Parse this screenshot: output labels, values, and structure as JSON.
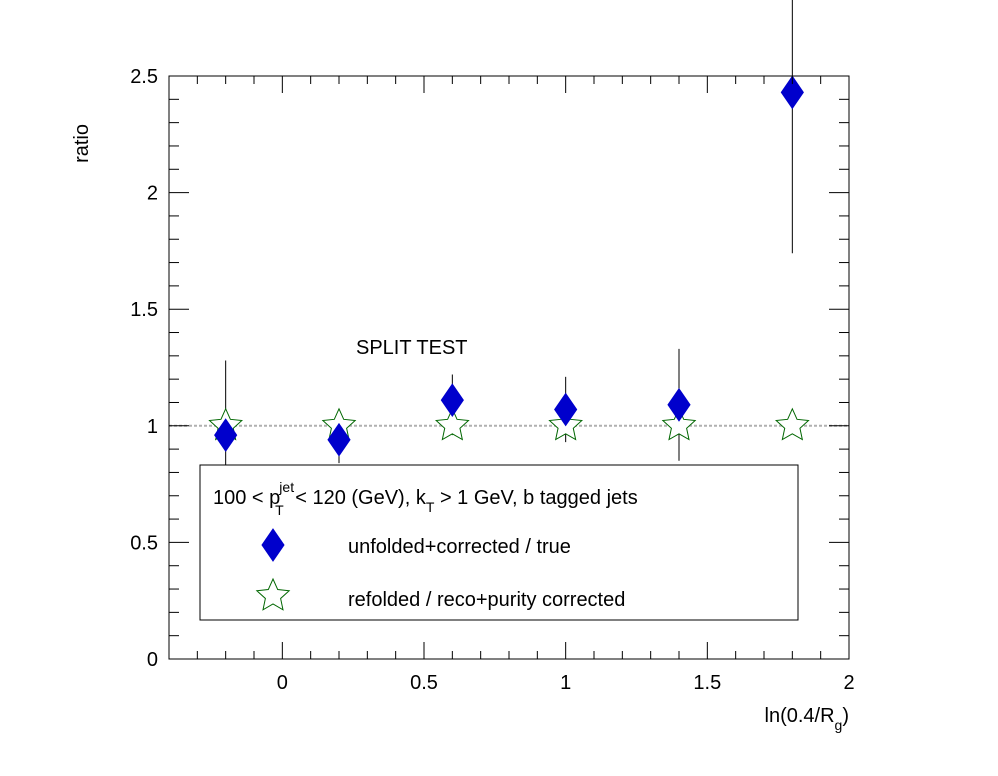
{
  "chart_data": {
    "type": "scatter",
    "ylabel": "ratio",
    "xlabel": {
      "main": "ln(0.4/R",
      "sub": "g",
      "close": ")"
    },
    "xlim": [
      -0.4,
      2.0
    ],
    "ylim": [
      0,
      2.5
    ],
    "xticks": [
      {
        "v": 0,
        "label": "0"
      },
      {
        "v": 0.5,
        "label": "0.5"
      },
      {
        "v": 1,
        "label": "1"
      },
      {
        "v": 1.5,
        "label": "1.5"
      },
      {
        "v": 2,
        "label": "2"
      }
    ],
    "yticks": [
      {
        "v": 0,
        "label": "0"
      },
      {
        "v": 0.5,
        "label": "0.5"
      },
      {
        "v": 1,
        "label": "1"
      },
      {
        "v": 1.5,
        "label": "1.5"
      },
      {
        "v": 2,
        "label": "2"
      },
      {
        "v": 2.5,
        "label": "2.5"
      }
    ],
    "reference_line": 1,
    "annotation": "SPLIT TEST",
    "legend_header": {
      "p1": "100 < p",
      "sup": "jet",
      "sub1": "T",
      "p2": " < 120 (GeV), k",
      "sub2": "T",
      "p3": " > 1 GeV, b tagged jets"
    },
    "series": [
      {
        "name": "unfolded+corrected / true",
        "marker": "diamond",
        "color": "#0000cc",
        "points": [
          {
            "x": -0.2,
            "y": 0.96,
            "err": 0.32
          },
          {
            "x": 0.2,
            "y": 0.94,
            "err": 0.1
          },
          {
            "x": 0.6,
            "y": 1.11,
            "err": 0.11
          },
          {
            "x": 1.0,
            "y": 1.07,
            "err": 0.14
          },
          {
            "x": 1.4,
            "y": 1.09,
            "err": 0.24
          },
          {
            "x": 1.8,
            "y": 2.43,
            "err": 0.69
          }
        ]
      },
      {
        "name": "refolded / reco+purity corrected",
        "marker": "open-star",
        "color": "#006600",
        "points": [
          {
            "x": -0.2,
            "y": 1.0,
            "err": 0.05
          },
          {
            "x": 0.2,
            "y": 1.0,
            "err": 0.03
          },
          {
            "x": 0.6,
            "y": 1.0,
            "err": 0.04
          },
          {
            "x": 1.0,
            "y": 1.0,
            "err": 0.03
          },
          {
            "x": 1.4,
            "y": 1.0,
            "err": 0.05
          },
          {
            "x": 1.8,
            "y": 1.0,
            "err": 0.02
          }
        ]
      }
    ],
    "legend_position": "bottom-left"
  }
}
